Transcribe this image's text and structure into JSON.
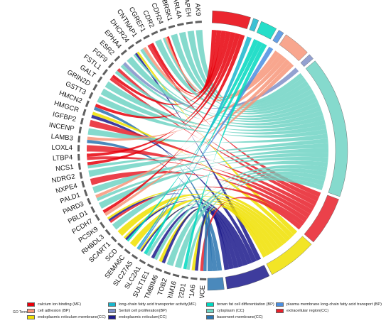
{
  "chart_data": {
    "type": "chord",
    "genes": [
      "AK9",
      "APEH",
      "ARL4A",
      "BRSK1",
      "CDH24",
      "CDR2",
      "CGREF1",
      "CNTNAP1",
      "DHCR24",
      "EPHA4",
      "ESR2",
      "FGF9",
      "FSTL1",
      "GALT",
      "GRIN2D",
      "GSTT3",
      "HMCN2",
      "HMGCR",
      "IGFBP2",
      "INCENP",
      "LAMB3",
      "LOXL4",
      "LTBP4",
      "NCS1",
      "NDRG2",
      "NXPE4",
      "PALD1",
      "PARD3",
      "PBLD1",
      "PCDH7",
      "PCSK9",
      "RHBDL3",
      "SCART1",
      "SCD",
      "SEMA6C",
      "SLC27A5",
      "SLC2A1",
      "SULT1E1",
      "TMBIM6",
      "TOB2",
      "TRIM16",
      "TSC22D1",
      "UGT1A6",
      "VWCE"
    ],
    "terms": [
      {
        "name": "calcium ion binding (MF)",
        "color": "#e8000b"
      },
      {
        "name": "long-chain fatty acid transporter activity(MF)",
        "color": "#1ab6cc"
      },
      {
        "name": "brown fat cell differentiation (BP)",
        "color": "#00d8c0"
      },
      {
        "name": "plasma membrane long-chain fatty acid transport (BP)",
        "color": "#4a8ee0"
      },
      {
        "name": "cell adhesion (BP)",
        "color": "#f7967a"
      },
      {
        "name": "Sertoli cell proliferation(BP)",
        "color": "#8090c8"
      },
      {
        "name": "cytoplasm (CC)",
        "color": "#70d4c4"
      },
      {
        "name": "extracellular region(CC)",
        "color": "#e8202a"
      },
      {
        "name": "endoplasmic reticulum membrane(CC)",
        "color": "#f0e000"
      },
      {
        "name": "endoplasmic reticulum(CC)",
        "color": "#1c1a8c"
      },
      {
        "name": "basement membrane(CC)",
        "color": "#2a74b0"
      }
    ],
    "links": [
      {
        "gene": "AK9",
        "term": 6
      },
      {
        "gene": "APEH",
        "term": 6
      },
      {
        "gene": "ARL4A",
        "term": 6
      },
      {
        "gene": "BRSK1",
        "term": 6
      },
      {
        "gene": "CDH24",
        "term": 0
      },
      {
        "gene": "CDH24",
        "term": 4
      },
      {
        "gene": "CDH24",
        "term": 6
      },
      {
        "gene": "CDR2",
        "term": 6
      },
      {
        "gene": "CGREF1",
        "term": 0
      },
      {
        "gene": "CGREF1",
        "term": 7
      },
      {
        "gene": "CNTNAP1",
        "term": 4
      },
      {
        "gene": "CNTNAP1",
        "term": 6
      },
      {
        "gene": "DHCR24",
        "term": 8
      },
      {
        "gene": "DHCR24",
        "term": 9
      },
      {
        "gene": "DHCR24",
        "term": 6
      },
      {
        "gene": "EPHA4",
        "term": 6
      },
      {
        "gene": "ESR2",
        "term": 5
      },
      {
        "gene": "ESR2",
        "term": 6
      },
      {
        "gene": "FGF9",
        "term": 7
      },
      {
        "gene": "FGF9",
        "term": 6
      },
      {
        "gene": "FSTL1",
        "term": 0
      },
      {
        "gene": "FSTL1",
        "term": 7
      },
      {
        "gene": "GALT",
        "term": 6
      },
      {
        "gene": "GRIN2D",
        "term": 6
      },
      {
        "gene": "GSTT3",
        "term": 6
      },
      {
        "gene": "HMCN2",
        "term": 0
      },
      {
        "gene": "HMCN2",
        "term": 10
      },
      {
        "gene": "HMGCR",
        "term": 8
      },
      {
        "gene": "HMGCR",
        "term": 9
      },
      {
        "gene": "IGFBP2",
        "term": 7
      },
      {
        "gene": "INCENP",
        "term": 6
      },
      {
        "gene": "LAMB3",
        "term": 4
      },
      {
        "gene": "LAMB3",
        "term": 10
      },
      {
        "gene": "LOXL4",
        "term": 7
      },
      {
        "gene": "LTBP4",
        "term": 0
      },
      {
        "gene": "LTBP4",
        "term": 7
      },
      {
        "gene": "NCS1",
        "term": 0
      },
      {
        "gene": "NCS1",
        "term": 6
      },
      {
        "gene": "NDRG2",
        "term": 6
      },
      {
        "gene": "NXPE4",
        "term": 7
      },
      {
        "gene": "PALD1",
        "term": 6
      },
      {
        "gene": "PARD3",
        "term": 4
      },
      {
        "gene": "PARD3",
        "term": 6
      },
      {
        "gene": "PBLD1",
        "term": 6
      },
      {
        "gene": "PCDH7",
        "term": 0
      },
      {
        "gene": "PCDH7",
        "term": 4
      },
      {
        "gene": "PCSK9",
        "term": 8
      },
      {
        "gene": "PCSK9",
        "term": 9
      },
      {
        "gene": "PCSK9",
        "term": 7
      },
      {
        "gene": "RHBDL3",
        "term": 6
      },
      {
        "gene": "SCART1",
        "term": 8
      },
      {
        "gene": "SCD",
        "term": 8
      },
      {
        "gene": "SCD",
        "term": 9
      },
      {
        "gene": "SCD",
        "term": 2
      },
      {
        "gene": "SEMA6C",
        "term": 8
      },
      {
        "gene": "SLC27A5",
        "term": 1
      },
      {
        "gene": "SLC27A5",
        "term": 3
      },
      {
        "gene": "SLC27A5",
        "term": 8
      },
      {
        "gene": "SLC27A5",
        "term": 9
      },
      {
        "gene": "SLC2A1",
        "term": 2
      },
      {
        "gene": "SLC2A1",
        "term": 6
      },
      {
        "gene": "SULT1E1",
        "term": 9
      },
      {
        "gene": "SULT1E1",
        "term": 6
      },
      {
        "gene": "TMBIM6",
        "term": 8
      },
      {
        "gene": "TMBIM6",
        "term": 9
      },
      {
        "gene": "TOB2",
        "term": 6
      },
      {
        "gene": "TRIM16",
        "term": 6
      },
      {
        "gene": "TSC22D1",
        "term": 2
      },
      {
        "gene": "TSC22D1",
        "term": 6
      },
      {
        "gene": "UGT1A6",
        "term": 8
      },
      {
        "gene": "UGT1A6",
        "term": 9
      },
      {
        "gene": "VWCE",
        "term": 7
      },
      {
        "gene": "VWCE",
        "term": 10
      }
    ]
  },
  "legend": {
    "title": "GO Terms",
    "items": [
      {
        "label": "calcium ion binding (MF)",
        "color": "#e8000b"
      },
      {
        "label": "long-chain fatty acid transporter activity(MF)",
        "color": "#1ab6cc"
      },
      {
        "label": "brown fat cell differentiation (BP)",
        "color": "#00d8c0"
      },
      {
        "label": "plasma membrane long-chain fatty acid transport (BP)",
        "color": "#4a8ee0"
      },
      {
        "label": "cell adhesion (BP)",
        "color": "#f7967a"
      },
      {
        "label": "Sertoli cell proliferation(BP)",
        "color": "#8090c8"
      },
      {
        "label": "cytoplasm (CC)",
        "color": "#70d4c4"
      },
      {
        "label": "extracellular region(CC)",
        "color": "#e8202a"
      },
      {
        "label": "endoplasmic reticulum membrane(CC)",
        "color": "#f0e000"
      },
      {
        "label": "endoplasmic reticulum(CC)",
        "color": "#1c1a8c"
      },
      {
        "label": "basement membrane(CC)",
        "color": "#2a74b0"
      }
    ]
  }
}
